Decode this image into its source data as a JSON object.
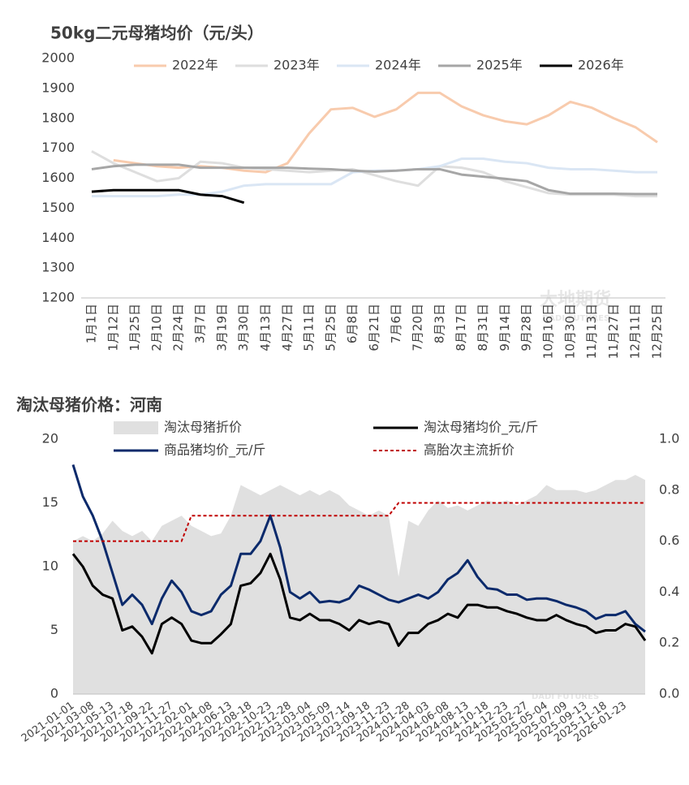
{
  "watermark": {
    "cn": "大地期货",
    "en": "DADI FUTURES"
  },
  "chart_data": [
    {
      "type": "line",
      "title": "50kg二元母猪均价（元/头）",
      "categories": [
        "1月1日",
        "1月12日",
        "1月25日",
        "2月10日",
        "2月24日",
        "3月7日",
        "3月19日",
        "3月30日",
        "4月13日",
        "4月27日",
        "5月11日",
        "5月25日",
        "6月8日",
        "6月21日",
        "7月6日",
        "7月20日",
        "8月3日",
        "8月17日",
        "8月31日",
        "9月14日",
        "9月28日",
        "10月16日",
        "10月30日",
        "11月13日",
        "11月27日",
        "12月11日",
        "12月25日"
      ],
      "ylim": [
        1200,
        2000
      ],
      "yticks": [
        1200,
        1300,
        1400,
        1500,
        1600,
        1700,
        1800,
        1900,
        2000
      ],
      "series": [
        {
          "name": "2022年",
          "color": "#f8cbad",
          "values": [
            null,
            1660,
            1650,
            1640,
            1635,
            1640,
            1635,
            1625,
            1620,
            1650,
            1750,
            1830,
            1835,
            1805,
            1830,
            1885,
            1885,
            1840,
            1810,
            1790,
            1780,
            1810,
            1855,
            1835,
            1800,
            1770,
            1720
          ]
        },
        {
          "name": "2023年",
          "color": "#dedede",
          "values": [
            1690,
            1650,
            1620,
            1590,
            1600,
            1655,
            1650,
            1635,
            1630,
            1625,
            1620,
            1625,
            1630,
            1610,
            1590,
            1575,
            1640,
            1635,
            1620,
            1590,
            1570,
            1550,
            1545,
            1545,
            1545,
            1540,
            1540
          ]
        },
        {
          "name": "2024年",
          "color": "#dae6f4",
          "values": [
            1540,
            1540,
            1540,
            1540,
            1545,
            1545,
            1555,
            1575,
            1580,
            1580,
            1580,
            1580,
            1620,
            1625,
            1625,
            1630,
            1640,
            1665,
            1665,
            1655,
            1650,
            1635,
            1630,
            1630,
            1625,
            1620,
            1620
          ]
        },
        {
          "name": "2025年",
          "color": "#a6a6a6",
          "values": [
            1630,
            1640,
            1645,
            1645,
            1645,
            1635,
            1635,
            1635,
            1635,
            1635,
            1632,
            1630,
            1625,
            1622,
            1625,
            1630,
            1630,
            1612,
            1605,
            1598,
            1590,
            1560,
            1548,
            1548,
            1548,
            1547,
            1547
          ]
        },
        {
          "name": "2026年",
          "color": "#000000",
          "values": [
            1555,
            1560,
            1560,
            1560,
            1560,
            1545,
            1540,
            1518,
            null,
            null,
            null,
            null,
            null,
            null,
            null,
            null,
            null,
            null,
            null,
            null,
            null,
            null,
            null,
            null,
            null,
            null,
            null
          ]
        }
      ]
    },
    {
      "type": "line",
      "title": "淘汰母猪价格：河南",
      "categories": [
        "2021-01-01",
        null,
        "2021-03-08",
        null,
        "2021-05-13",
        null,
        "2021-07-18",
        null,
        "2021-09-22",
        null,
        "2021-11-27",
        null,
        "2022-02-01",
        null,
        "2022-04-08",
        null,
        "2022-06-13",
        null,
        "2022-08-18",
        null,
        "2022-10-23",
        null,
        "2022-12-28",
        null,
        "2023-03-04",
        null,
        "2023-05-09",
        null,
        "2023-07-14",
        null,
        "2023-09-18",
        null,
        "2023-11-23",
        null,
        "2024-01-28",
        null,
        "2024-04-03",
        null,
        "2024-06-08",
        null,
        "2024-08-13",
        null,
        "2024-10-18",
        null,
        "2024-12-23",
        null,
        "2025-02-27",
        null,
        "2025-05-04",
        null,
        "2025-07-09",
        null,
        "2025-09-13",
        null,
        "2025-11-18",
        null,
        "2026-01-23",
        null,
        null
      ],
      "ylim": [
        0,
        20
      ],
      "yticks": [
        0,
        5,
        10,
        15,
        20
      ],
      "y2lim": [
        0,
        1
      ],
      "y2ticks": [
        {
          "value": 0,
          "label": "0.0"
        },
        0.2,
        0.4,
        0.6,
        0.8,
        {
          "value": 1,
          "label": "1.0"
        }
      ],
      "series": [
        {
          "name": "淘汰母猪折价",
          "type": "area",
          "axis": "y2",
          "color": "#e0e0e0",
          "values": [
            0.6,
            0.62,
            0.6,
            0.63,
            0.68,
            0.64,
            0.62,
            0.64,
            0.6,
            0.66,
            0.68,
            0.7,
            0.66,
            0.64,
            0.62,
            0.63,
            0.7,
            0.82,
            0.8,
            0.78,
            0.8,
            0.82,
            0.8,
            0.78,
            0.8,
            0.78,
            0.8,
            0.78,
            0.74,
            0.72,
            0.7,
            0.72,
            0.7,
            0.46,
            0.68,
            0.66,
            0.72,
            0.76,
            0.73,
            0.74,
            0.72,
            0.74,
            0.76,
            0.75,
            0.76,
            0.74,
            0.76,
            0.78,
            0.82,
            0.8,
            0.8,
            0.8,
            0.79,
            0.8,
            0.82,
            0.84,
            0.84,
            0.86,
            0.84
          ]
        },
        {
          "name": "淘汰母猪均价_元/斤",
          "type": "line",
          "color": "#000000",
          "values": [
            11,
            10,
            8.5,
            7.8,
            7.5,
            5,
            5.3,
            4.5,
            3.2,
            5.5,
            6,
            5.5,
            4.2,
            4,
            4,
            4.7,
            5.5,
            8.5,
            8.7,
            9.5,
            11,
            9,
            6,
            5.8,
            6.3,
            5.8,
            5.8,
            5.5,
            5,
            5.8,
            5.5,
            5.7,
            5.5,
            3.8,
            4.8,
            4.8,
            5.5,
            5.8,
            6.3,
            6,
            7,
            7,
            6.8,
            6.8,
            6.5,
            6.3,
            6,
            5.8,
            5.8,
            6.2,
            5.8,
            5.5,
            5.3,
            4.8,
            5,
            5,
            5.5,
            5.3,
            4.2
          ]
        },
        {
          "name": "商品猪均价_元/斤",
          "type": "line",
          "color": "#0b2a6b",
          "values": [
            18,
            15.5,
            14,
            12,
            9.5,
            7,
            7.8,
            7,
            5.5,
            7.5,
            8.9,
            8,
            6.5,
            6.2,
            6.5,
            7.8,
            8.5,
            11,
            11,
            12,
            14,
            11.5,
            8,
            7.5,
            8,
            7.2,
            7.3,
            7.2,
            7.5,
            8.5,
            8.2,
            7.8,
            7.4,
            7.2,
            7.5,
            7.8,
            7.5,
            8,
            9,
            9.5,
            10.5,
            9.2,
            8.3,
            8.2,
            7.8,
            7.8,
            7.4,
            7.5,
            7.5,
            7.3,
            7,
            6.8,
            6.5,
            5.9,
            6.2,
            6.2,
            6.5,
            5.5,
            4.9
          ]
        },
        {
          "name": "高胎次主流折价",
          "type": "line",
          "dash": true,
          "axis": "y2",
          "color": "#c00000",
          "values": [
            0.6,
            0.6,
            0.6,
            0.6,
            0.6,
            0.6,
            0.6,
            0.6,
            0.6,
            0.6,
            0.6,
            0.6,
            0.7,
            0.7,
            0.7,
            0.7,
            0.7,
            0.7,
            0.7,
            0.7,
            0.7,
            0.7,
            0.7,
            0.7,
            0.7,
            0.7,
            0.7,
            0.7,
            0.7,
            0.7,
            0.7,
            0.7,
            0.7,
            0.75,
            0.75,
            0.75,
            0.75,
            0.75,
            0.75,
            0.75,
            0.75,
            0.75,
            0.75,
            0.75,
            0.75,
            0.75,
            0.75,
            0.75,
            0.75,
            0.75,
            0.75,
            0.75,
            0.75,
            0.75,
            0.75,
            0.75,
            0.75,
            0.75,
            0.75
          ]
        }
      ]
    }
  ]
}
